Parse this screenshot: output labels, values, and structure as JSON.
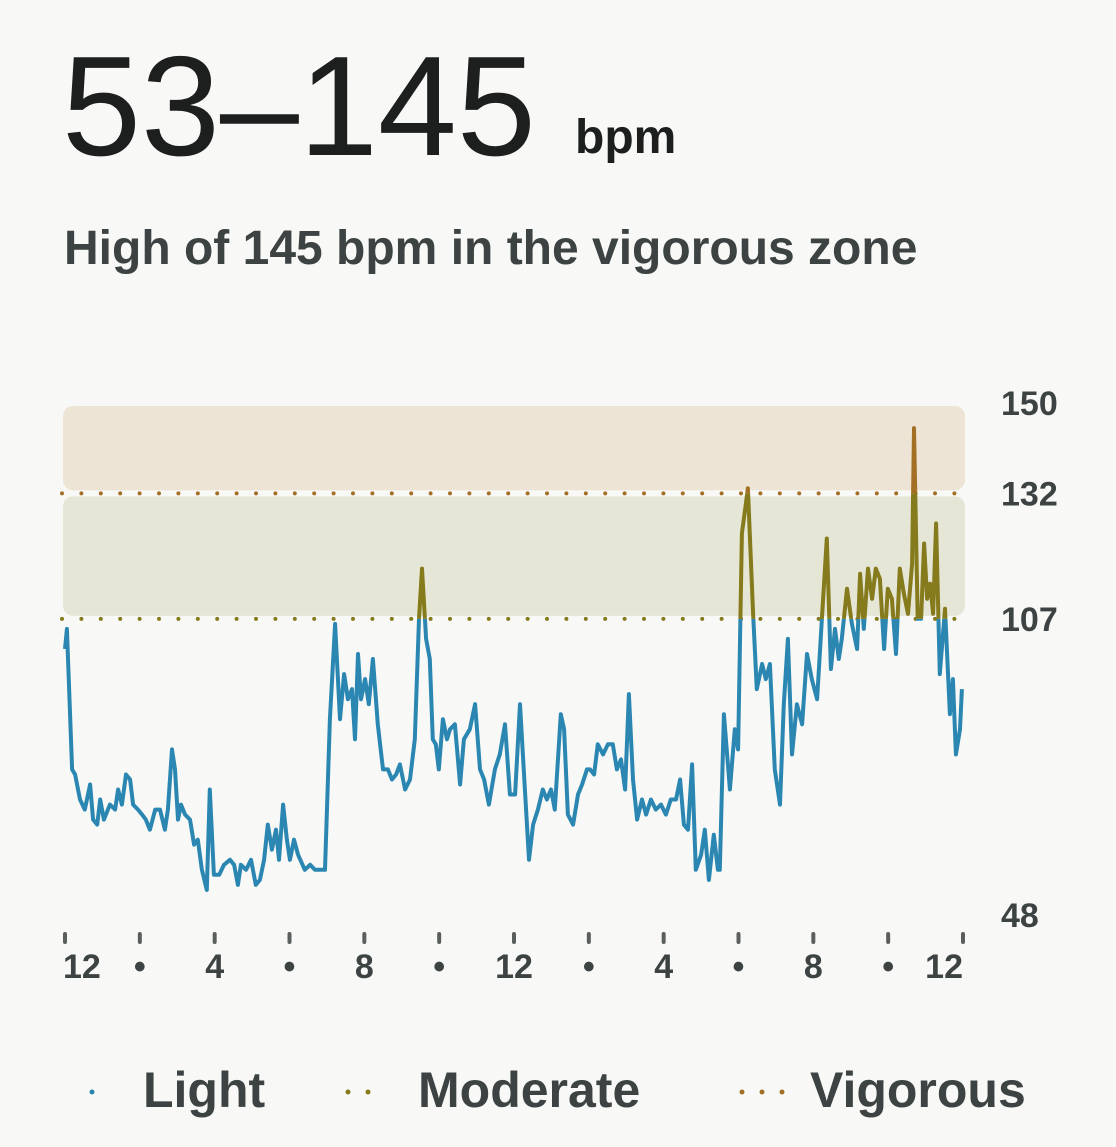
{
  "header": {
    "range": "53–145",
    "unit": "bpm",
    "subtitle": "High of 145 bpm in the vigorous zone"
  },
  "chart_data": {
    "type": "line",
    "x": [
      0,
      0.05,
      0.19,
      0.27,
      0.4,
      0.53,
      0.67,
      0.75,
      0.86,
      0.94,
      1.04,
      1.2,
      1.34,
      1.42,
      1.52,
      1.63,
      1.74,
      1.82,
      1.95,
      2.06,
      2.16,
      2.27,
      2.41,
      2.54,
      2.67,
      2.75,
      2.86,
      2.94,
      3.02,
      3.1,
      3.21,
      3.34,
      3.45,
      3.55,
      3.66,
      3.79,
      3.87,
      3.98,
      4.12,
      4.25,
      4.41,
      4.52,
      4.62,
      4.7,
      4.84,
      4.97,
      5.1,
      5.21,
      5.32,
      5.42,
      5.53,
      5.64,
      5.72,
      5.83,
      5.93,
      6.01,
      6.12,
      6.23,
      6.41,
      6.55,
      6.68,
      6.81,
      6.95,
      7.08,
      7.22,
      7.35,
      7.46,
      7.56,
      7.67,
      7.75,
      7.83,
      7.91,
      8.02,
      8.12,
      8.23,
      8.36,
      8.5,
      8.63,
      8.74,
      8.85,
      8.95,
      9.09,
      9.22,
      9.35,
      9.46,
      9.54,
      9.65,
      9.75,
      9.83,
      9.91,
      9.99,
      10.1,
      10.21,
      10.29,
      10.42,
      10.56,
      10.66,
      10.82,
      10.96,
      11.09,
      11.2,
      11.33,
      11.49,
      11.62,
      11.76,
      11.89,
      12.03,
      12.16,
      12.29,
      12.4,
      12.51,
      12.64,
      12.77,
      12.88,
      12.99,
      13.09,
      13.25,
      13.34,
      13.44,
      13.58,
      13.71,
      13.82,
      13.95,
      14.03,
      14.14,
      14.24,
      14.38,
      14.51,
      14.64,
      14.75,
      14.86,
      14.97,
      15.07,
      15.18,
      15.29,
      15.42,
      15.53,
      15.66,
      15.79,
      15.93,
      16.06,
      16.19,
      16.33,
      16.44,
      16.54,
      16.65,
      16.76,
      16.86,
      17.0,
      17.1,
      17.21,
      17.34,
      17.45,
      17.5,
      17.61,
      17.77,
      17.9,
      17.99,
      18.09,
      18.25,
      18.39,
      18.49,
      18.63,
      18.73,
      18.84,
      18.97,
      19.11,
      19.21,
      19.32,
      19.43,
      19.56,
      19.7,
      19.83,
      19.96,
      20.1,
      20.23,
      20.36,
      20.47,
      20.58,
      20.68,
      20.76,
      20.9,
      21.03,
      21.17,
      21.25,
      21.35,
      21.46,
      21.57,
      21.67,
      21.78,
      21.89,
      21.99,
      22.1,
      22.21,
      22.31,
      22.42,
      22.53,
      22.64,
      22.69,
      22.79,
      22.88,
      22.96,
      23.04,
      23.12,
      23.2,
      23.28,
      23.38,
      23.52,
      23.65,
      23.73,
      23.81,
      23.92,
      23.97
    ],
    "values": [
      101,
      105,
      77,
      76,
      71,
      69,
      74,
      67,
      66,
      71,
      67,
      70,
      69,
      73,
      70,
      76,
      75,
      70,
      69,
      68,
      67,
      65,
      69,
      69,
      65,
      69,
      81,
      77,
      67,
      70,
      68,
      67,
      62,
      63,
      57,
      53,
      73,
      56,
      56,
      58,
      59,
      58,
      54,
      58,
      57,
      59,
      54,
      55,
      59,
      66,
      61,
      65,
      59,
      70,
      63,
      59,
      63,
      60,
      57,
      58,
      57,
      57,
      57,
      87,
      106,
      87,
      96,
      91,
      93,
      83,
      100,
      91,
      95,
      90,
      99,
      86,
      77,
      77,
      75,
      76,
      78,
      73,
      75,
      83,
      107,
      117,
      103,
      99,
      83,
      82,
      77,
      87,
      83,
      85,
      86,
      74,
      83,
      85,
      90,
      77,
      75,
      70,
      77,
      80,
      86,
      72,
      72,
      90,
      73,
      59,
      66,
      69,
      73,
      71,
      73,
      69,
      88,
      85,
      68,
      66,
      72,
      74,
      77,
      77,
      76,
      82,
      80,
      82,
      82,
      77,
      79,
      73,
      92,
      75,
      67,
      71,
      68,
      71,
      69,
      70,
      68,
      71,
      71,
      75,
      66,
      65,
      78,
      57,
      60,
      65,
      55,
      64,
      57,
      57,
      88,
      73,
      85,
      81,
      124,
      133,
      108,
      93,
      98,
      95,
      98,
      77,
      70,
      90,
      103,
      80,
      90,
      86,
      100,
      95,
      91,
      107,
      123,
      97,
      105,
      99,
      103,
      113,
      106,
      101,
      116,
      105,
      117,
      111,
      117,
      115,
      101,
      113,
      111,
      100,
      117,
      112,
      108,
      118,
      145,
      107,
      107,
      122,
      111,
      114,
      108,
      126,
      96,
      109,
      88,
      95,
      80,
      85,
      93
    ],
    "xlim": [
      0,
      24
    ],
    "xticks": [
      {
        "value": 0,
        "label": "12"
      },
      {
        "value": 2,
        "label": "•"
      },
      {
        "value": 4,
        "label": "4"
      },
      {
        "value": 6,
        "label": "•"
      },
      {
        "value": 8,
        "label": "8"
      },
      {
        "value": 10,
        "label": "•"
      },
      {
        "value": 12,
        "label": "12"
      },
      {
        "value": 14,
        "label": "•"
      },
      {
        "value": 16,
        "label": "4"
      },
      {
        "value": 18,
        "label": "•"
      },
      {
        "value": 20,
        "label": "8"
      },
      {
        "value": 22,
        "label": "•"
      },
      {
        "value": 24,
        "label": "12"
      }
    ],
    "ylim": [
      48,
      150
    ],
    "yticks": [
      48,
      107,
      132,
      150
    ],
    "zones": [
      {
        "name": "Light",
        "color": "#2b87b2",
        "to": 107
      },
      {
        "name": "Moderate",
        "color": "#857a1c",
        "from": 107,
        "to": 132,
        "band": "#e6e6d7"
      },
      {
        "name": "Vigorous",
        "color": "#a36f25",
        "from": 132,
        "to": 150,
        "band": "#ede4d6"
      }
    ],
    "legend": "bottom"
  }
}
